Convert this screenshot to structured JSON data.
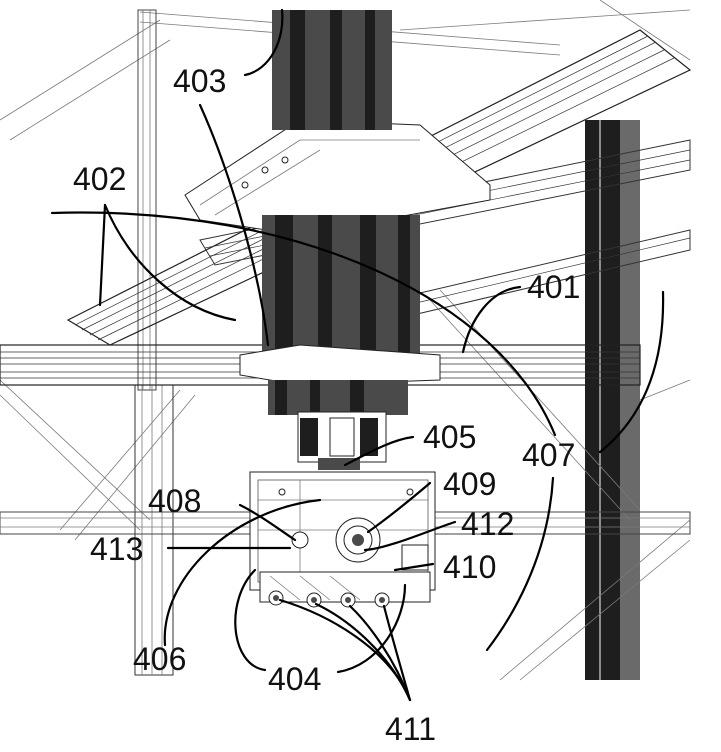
{
  "figure": {
    "labels": {
      "l401": "401",
      "l402": "402",
      "l403": "403",
      "l404": "404",
      "l405": "405",
      "l406": "406",
      "l407": "407",
      "l408": "408",
      "l409": "409",
      "l410": "410",
      "l411": "411",
      "l412": "412",
      "l413": "413"
    }
  }
}
